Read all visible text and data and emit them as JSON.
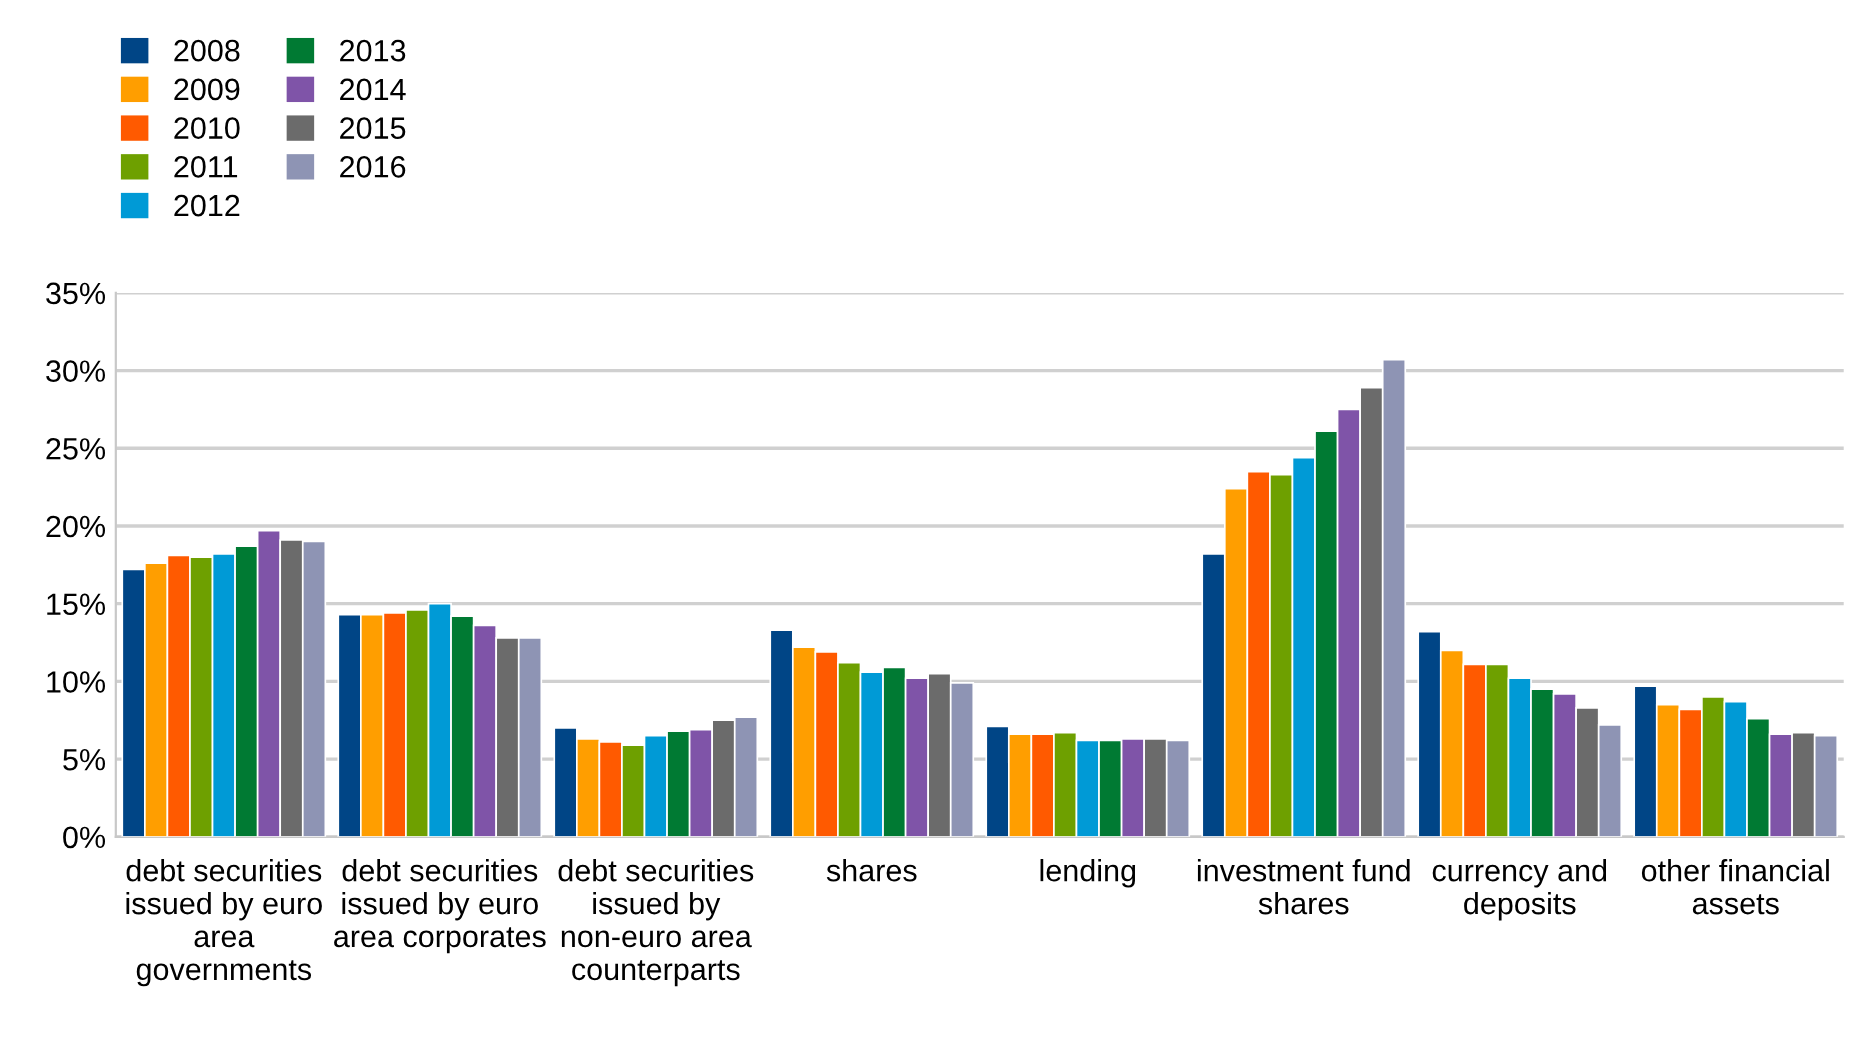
{
  "chart_data": {
    "type": "bar",
    "categories": [
      "debt securities issued by euro area governments",
      "debt securities issued by euro area corporates",
      "debt securities issued by non-euro area counterparts",
      "shares",
      "lending",
      "investment fund shares",
      "currency and deposits",
      "other financial assets"
    ],
    "series": [
      {
        "name": "2008",
        "color": "#004586",
        "values": [
          17.2,
          14.3,
          7.0,
          13.3,
          7.1,
          18.2,
          13.2,
          9.7
        ]
      },
      {
        "name": "2009",
        "color": "#ff9e00",
        "values": [
          17.6,
          14.3,
          6.3,
          12.2,
          6.6,
          22.4,
          12.0,
          8.5
        ]
      },
      {
        "name": "2010",
        "color": "#ff5a00",
        "values": [
          18.1,
          14.4,
          6.1,
          11.9,
          6.6,
          23.5,
          11.1,
          8.2
        ]
      },
      {
        "name": "2011",
        "color": "#6ea000",
        "values": [
          18.0,
          14.6,
          5.9,
          11.2,
          6.7,
          23.3,
          11.1,
          9.0
        ]
      },
      {
        "name": "2012",
        "color": "#009ad6",
        "values": [
          18.2,
          15.0,
          6.5,
          10.6,
          6.2,
          24.4,
          10.2,
          8.7
        ]
      },
      {
        "name": "2013",
        "color": "#007a33",
        "values": [
          18.7,
          14.2,
          6.8,
          10.9,
          6.2,
          26.1,
          9.5,
          7.6
        ]
      },
      {
        "name": "2014",
        "color": "#7f54a8",
        "values": [
          19.7,
          13.6,
          6.9,
          10.2,
          6.3,
          27.5,
          9.2,
          6.6
        ]
      },
      {
        "name": "2015",
        "color": "#6b6b6b",
        "values": [
          19.1,
          12.8,
          7.5,
          10.5,
          6.3,
          28.9,
          8.3,
          6.7
        ]
      },
      {
        "name": "2016",
        "color": "#8e94b4",
        "values": [
          19.0,
          12.8,
          7.7,
          9.9,
          6.2,
          30.7,
          7.2,
          6.5
        ]
      }
    ],
    "ylim": [
      0,
      35
    ],
    "yticks": [
      {
        "value": 0,
        "label": "0%"
      },
      {
        "value": 5,
        "label": "5%"
      },
      {
        "value": 10,
        "label": "10%"
      },
      {
        "value": 15,
        "label": "15%"
      },
      {
        "value": 20,
        "label": "20%"
      },
      {
        "value": 25,
        "label": "25%"
      },
      {
        "value": 30,
        "label": "30%"
      },
      {
        "value": 35,
        "label": "35%"
      }
    ],
    "grid": "y",
    "legend": "top left"
  }
}
